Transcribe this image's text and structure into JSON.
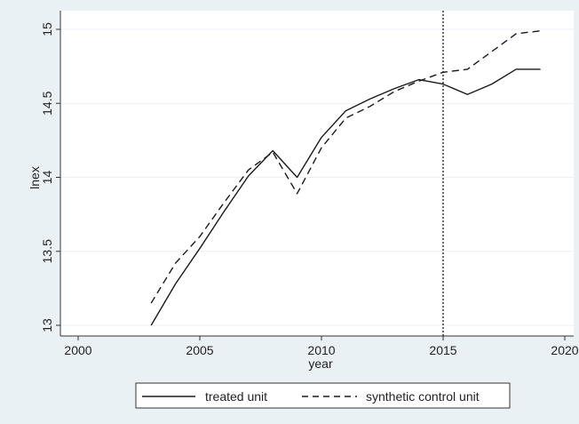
{
  "chart_data": {
    "type": "line",
    "title": "",
    "xlabel": "year",
    "ylabel": "lnex",
    "xlim": [
      2000,
      2020
    ],
    "ylim": [
      13,
      15
    ],
    "xticks": [
      2000,
      2005,
      2010,
      2015,
      2020
    ],
    "xtick_labels": [
      "2000",
      "2005",
      "2010",
      "2015",
      "2020"
    ],
    "yticks": [
      13,
      13.5,
      14,
      14.5,
      15
    ],
    "ytick_labels": [
      "13",
      "13.5",
      "14",
      "14.5",
      "15"
    ],
    "grid": "horizontal",
    "legend_position": "bottom",
    "reference_line": {
      "x": 2015,
      "style": "dotted"
    },
    "x": [
      2003,
      2004,
      2005,
      2006,
      2007,
      2008,
      2009,
      2010,
      2011,
      2012,
      2013,
      2014,
      2015,
      2016,
      2017,
      2018,
      2019
    ],
    "series": [
      {
        "name": "treated unit",
        "style": "solid",
        "values": [
          13.0,
          13.28,
          13.52,
          13.77,
          14.01,
          14.18,
          14.0,
          14.27,
          14.45,
          14.53,
          14.6,
          14.66,
          14.63,
          14.56,
          14.63,
          14.73,
          14.73
        ]
      },
      {
        "name": "synthetic control unit",
        "style": "dashed",
        "values": [
          13.15,
          13.42,
          13.6,
          13.83,
          14.05,
          14.17,
          13.89,
          14.2,
          14.4,
          14.48,
          14.58,
          14.65,
          14.71,
          14.73,
          14.85,
          14.97,
          14.99
        ]
      }
    ]
  },
  "colors": {
    "outer_background": "#eaf1f4",
    "plot_background": "#ffffff",
    "grid": "#eaf1f4",
    "line": "#1a1a1a",
    "reference_line": "#1a1a1a"
  }
}
